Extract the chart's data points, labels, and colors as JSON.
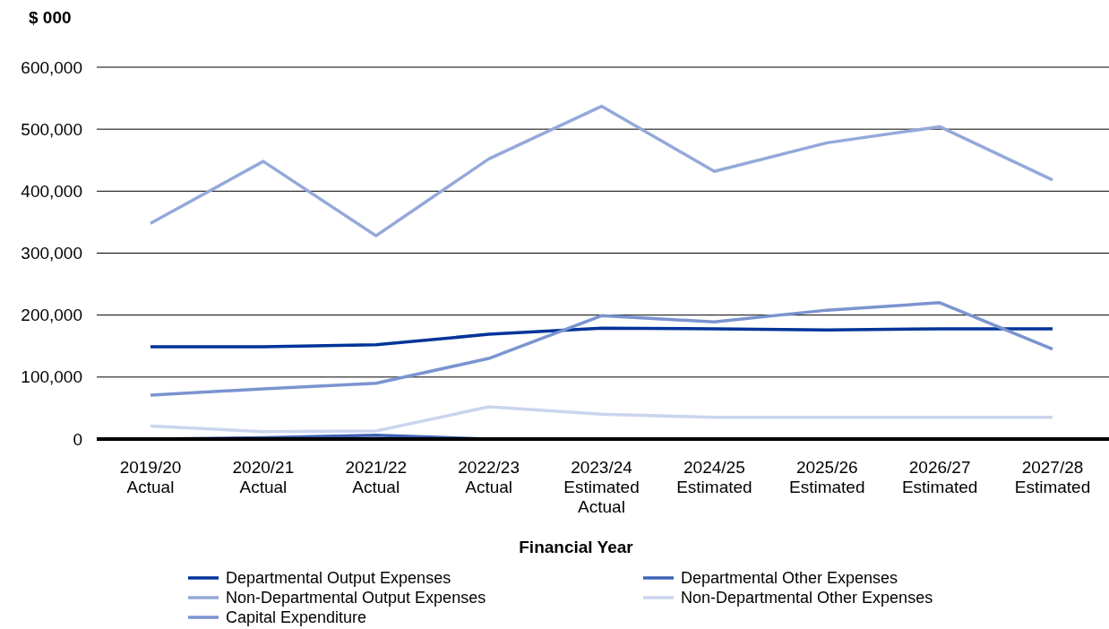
{
  "chart_data": {
    "type": "line",
    "ylabel": "$ 000",
    "xlabel": "Financial Year",
    "categories": [
      "2019/20\nActual",
      "2020/21\nActual",
      "2021/22\nActual",
      "2022/23\nActual",
      "2023/24\nEstimated\nActual",
      "2024/25\nEstimated",
      "2025/26\nEstimated",
      "2026/27\nEstimated",
      "2027/28\nEstimated"
    ],
    "ylim": [
      0,
      600000
    ],
    "yticks": [
      {
        "value": 0,
        "label": "0"
      },
      {
        "value": 100000,
        "label": "100,000"
      },
      {
        "value": 200000,
        "label": "200,000"
      },
      {
        "value": 300000,
        "label": "300,000"
      },
      {
        "value": 400000,
        "label": "400,000"
      },
      {
        "value": 500000,
        "label": "500,000"
      },
      {
        "value": 600000,
        "label": "600,000"
      }
    ],
    "grid": "y",
    "legend": "bottom",
    "marker": "none",
    "series": [
      {
        "name": "Departmental Output Expenses",
        "color": "#003399",
        "values": [
          149000,
          149000,
          152000,
          169000,
          179000,
          178000,
          176000,
          178000,
          178000
        ]
      },
      {
        "name": "Departmental Other Expenses",
        "color": "#3f63b5",
        "values": [
          0,
          2000,
          6000,
          0,
          null,
          null,
          null,
          null,
          null
        ]
      },
      {
        "name": "Non-Departmental Output Expenses",
        "color": "#94a9d9",
        "values": [
          348000,
          448000,
          328000,
          452000,
          537000,
          432000,
          478000,
          504000,
          418000
        ]
      },
      {
        "name": "Non-Departmental Other Expenses",
        "color": "#cad5ee",
        "values": [
          21000,
          12000,
          13000,
          52000,
          40000,
          35000,
          35000,
          35000,
          35000
        ]
      },
      {
        "name": "Capital Expenditure",
        "color": "#7a94cf",
        "values": [
          71000,
          81000,
          90000,
          130000,
          199000,
          189000,
          208000,
          220000,
          145000
        ]
      }
    ]
  }
}
